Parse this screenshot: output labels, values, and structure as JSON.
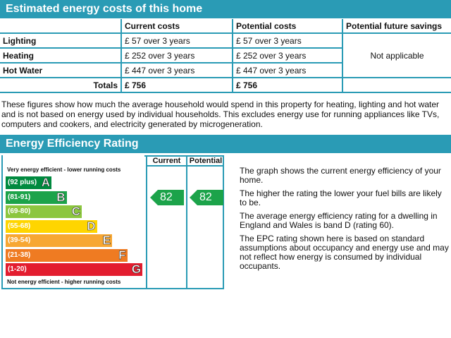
{
  "costs_section": {
    "title": "Estimated energy costs of this home",
    "headers": [
      "Current costs",
      "Potential costs",
      "Potential future savings"
    ],
    "rows": [
      {
        "label": "Lighting",
        "current": "£ 57 over 3 years",
        "potential": "£ 57 over 3 years"
      },
      {
        "label": "Heating",
        "current": "£ 252 over 3 years",
        "potential": "£ 252 over 3 years"
      },
      {
        "label": "Hot Water",
        "current": "£ 447 over 3 years",
        "potential": "£ 447 over 3 years"
      }
    ],
    "totals": {
      "label": "Totals",
      "current": "£ 756",
      "potential": "£ 756"
    },
    "savings": "Not applicable",
    "note": "These figures show how much the average household would spend in this property for heating, lighting and hot water and is not based on energy used by individual households. This excludes energy use for running appliances like TVs, computers and cookers, and electricity generated by microgeneration."
  },
  "rating_section": {
    "title": "Energy Efficiency Rating",
    "col_current": "Current",
    "col_potential": "Potential",
    "top_caption": "Very energy efficient - lower running costs",
    "bottom_caption": "Not energy efficient - higher running costs",
    "bands": [
      {
        "range": "(92 plus)",
        "letter": "A",
        "color": "#008a3f"
      },
      {
        "range": "(81-91)",
        "letter": "B",
        "color": "#1ca34a"
      },
      {
        "range": "(69-80)",
        "letter": "C",
        "color": "#8cc63f"
      },
      {
        "range": "(55-68)",
        "letter": "D",
        "color": "#ffd500"
      },
      {
        "range": "(39-54)",
        "letter": "E",
        "color": "#f7a733"
      },
      {
        "range": "(21-38)",
        "letter": "F",
        "color": "#ef7b22"
      },
      {
        "range": "(1-20)",
        "letter": "G",
        "color": "#e31d2f"
      }
    ],
    "current_rating": 82,
    "potential_rating": 82,
    "rating_color": "#1ca34a",
    "explanation": [
      "The graph shows the current energy efficiency of your home.",
      "The higher the rating the lower your fuel bills are likely to be.",
      "The average energy efficiency rating for a dwelling in England and Wales is band D (rating 60).",
      "The EPC rating shown here is based on standard assumptions about occupancy and energy use and may not reflect how energy is consumed by individual occupants."
    ]
  }
}
